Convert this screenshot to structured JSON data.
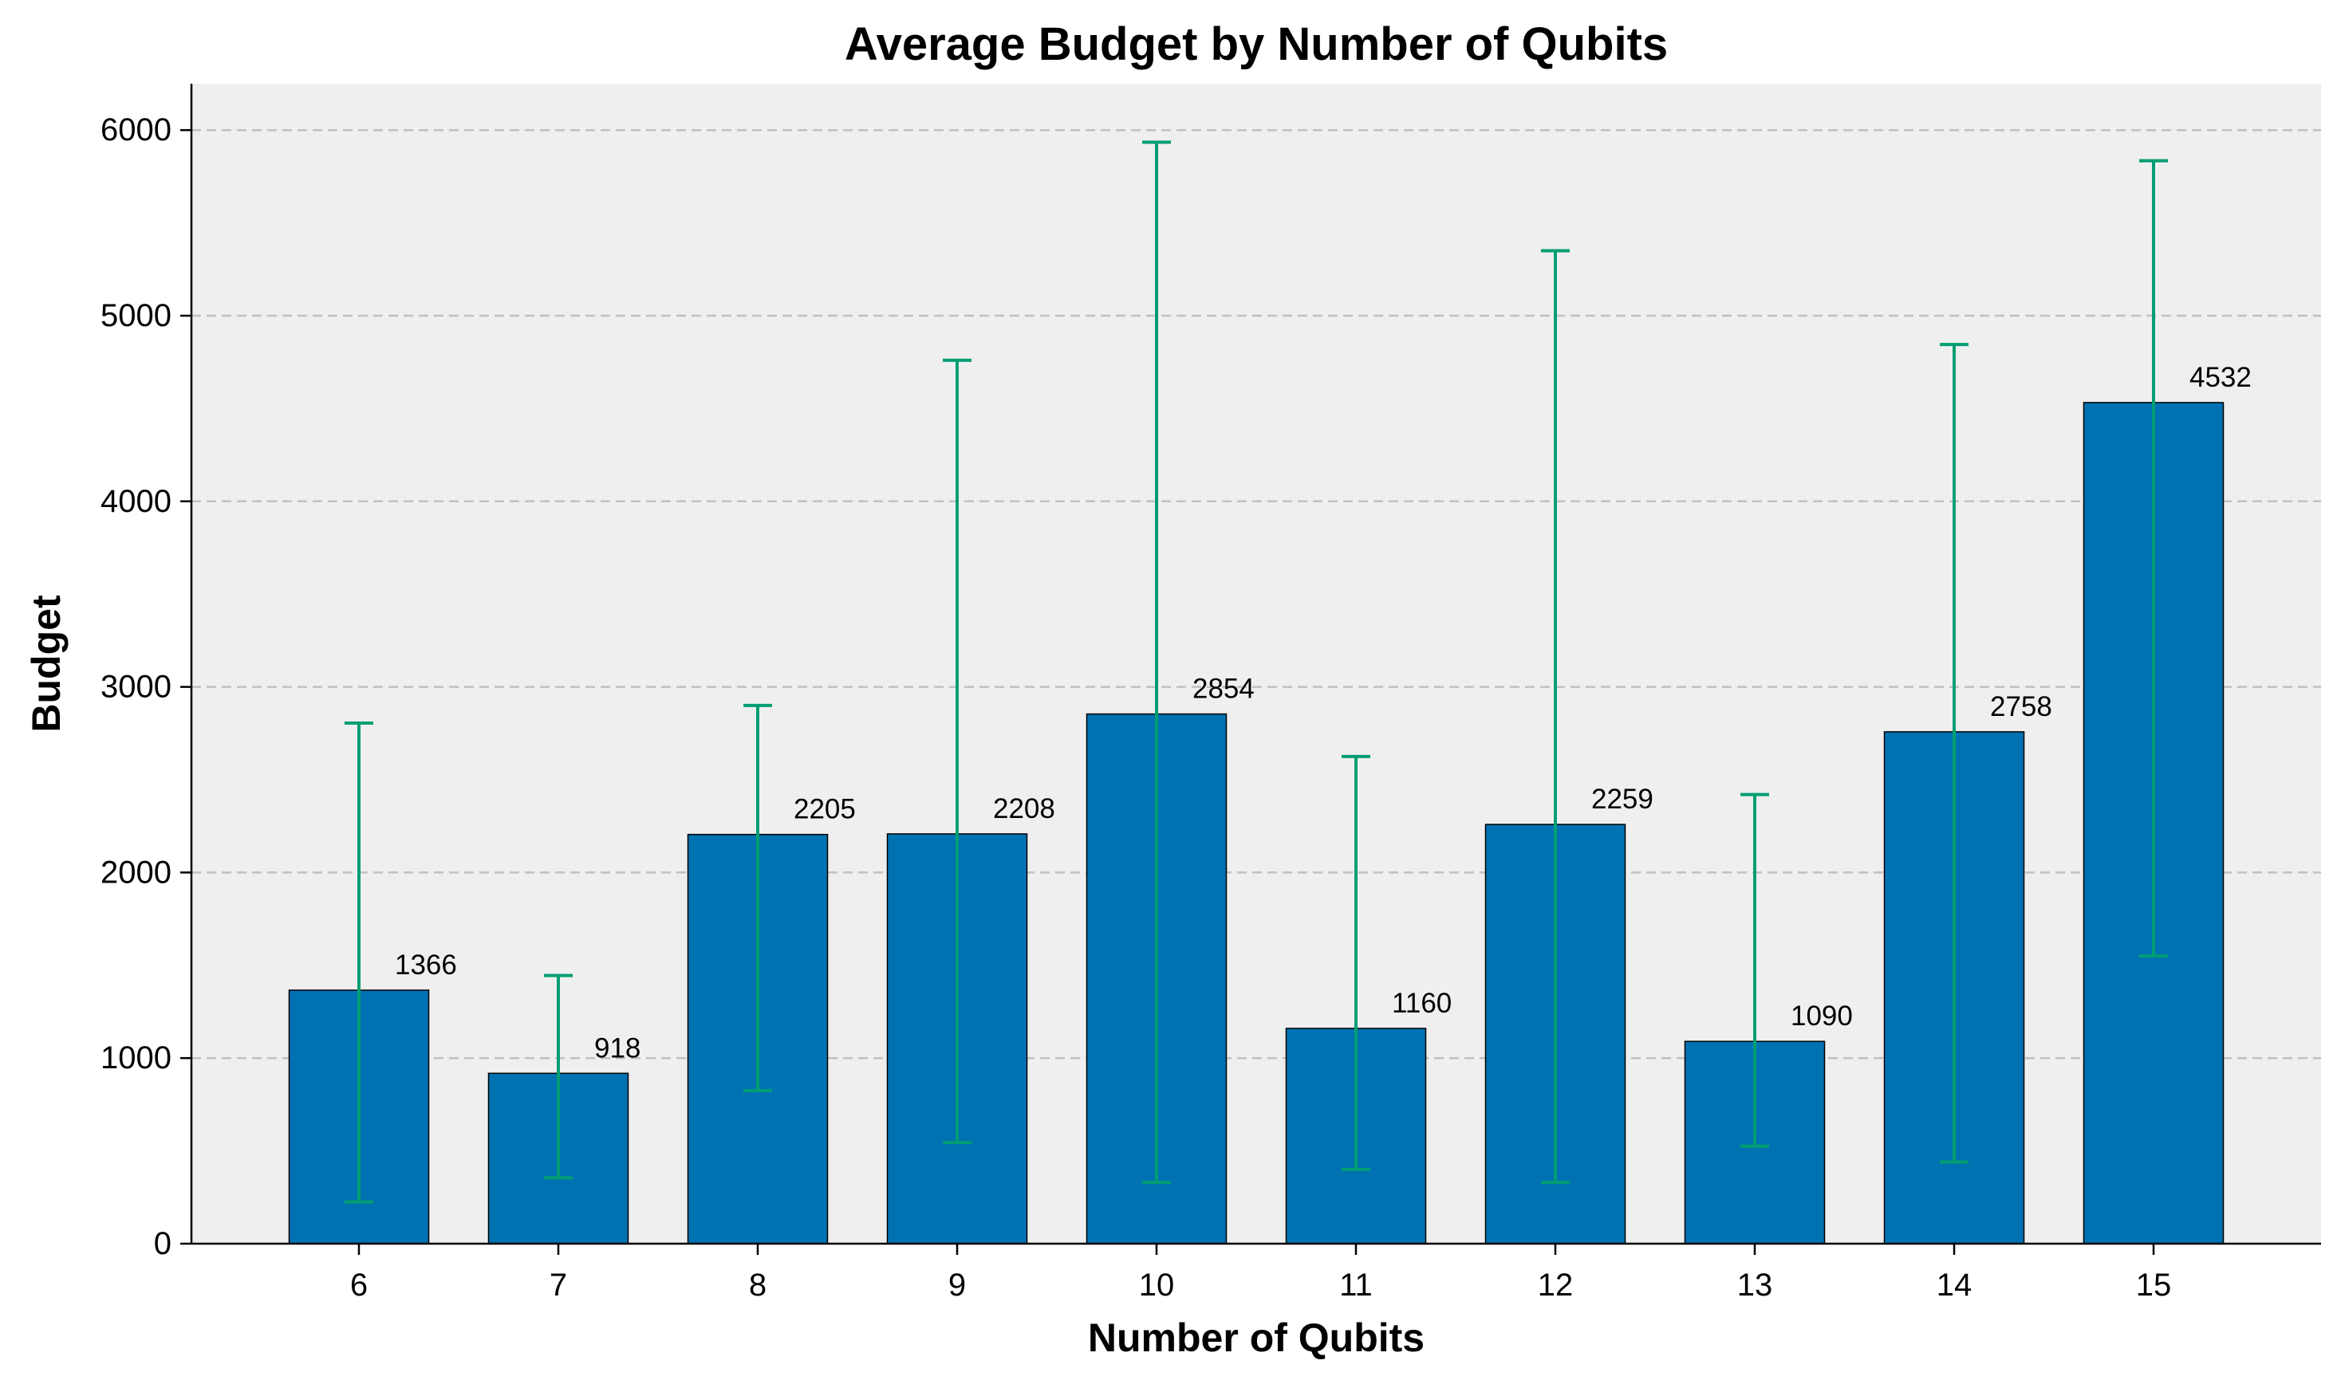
{
  "chart_data": {
    "type": "bar",
    "title": "Average Budget by Number of Qubits",
    "xlabel": "Number of Qubits",
    "ylabel": "Budget",
    "categories": [
      "6",
      "7",
      "8",
      "9",
      "10",
      "11",
      "12",
      "13",
      "14",
      "15"
    ],
    "values": [
      1366,
      918,
      2205,
      2208,
      2854,
      1160,
      2259,
      1090,
      2758,
      4532
    ],
    "value_labels": [
      "1366",
      "918",
      "2205",
      "2208",
      "2854",
      "1160",
      "2259",
      "1090",
      "2758",
      "4532"
    ],
    "error_low": [
      225,
      355,
      825,
      545,
      330,
      400,
      330,
      525,
      440,
      1550
    ],
    "error_high": [
      2805,
      1445,
      2900,
      4760,
      5935,
      2625,
      5350,
      2420,
      4845,
      5835
    ],
    "ylim": [
      0,
      6250
    ],
    "yticks": [
      0,
      1000,
      2000,
      3000,
      4000,
      5000,
      6000
    ],
    "ytick_labels": [
      "0",
      "1000",
      "2000",
      "3000",
      "4000",
      "5000",
      "6000"
    ],
    "grid": "y, dashed",
    "legend": "none",
    "colors": {
      "bar": "#0072b2",
      "error_bar": "#009e73",
      "plot_background": "#efefef",
      "figure_background": "#ffffff"
    }
  }
}
